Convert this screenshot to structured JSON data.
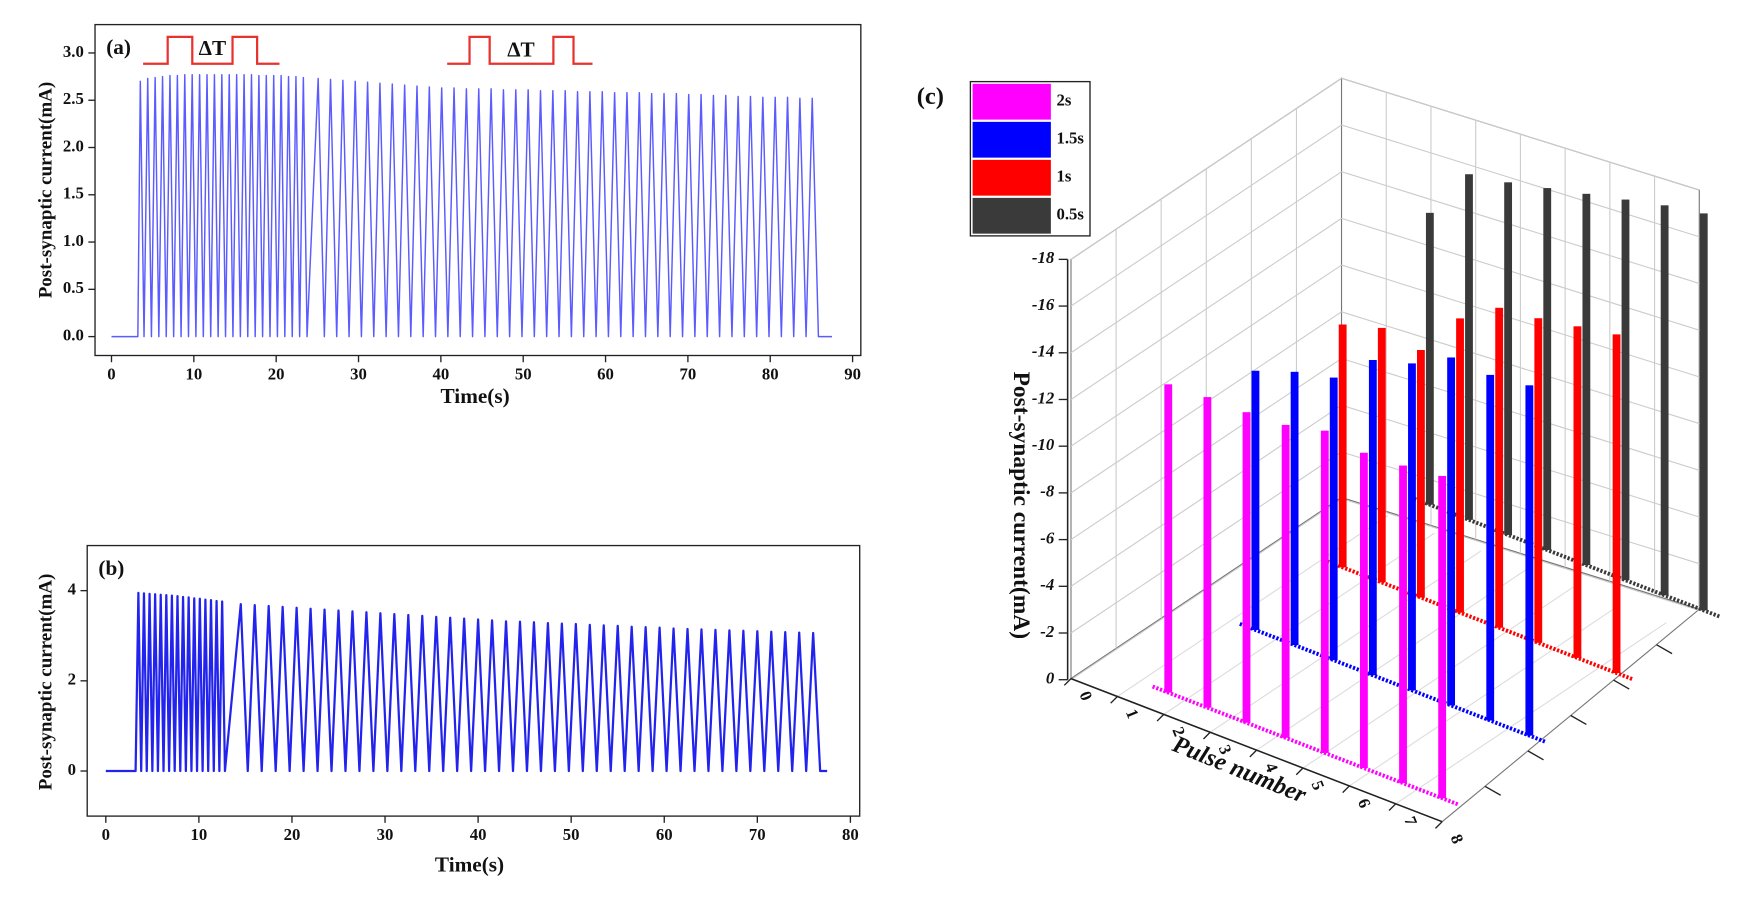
{
  "chart_data": [
    {
      "type": "line",
      "label": "(a)",
      "annotations": [
        "ΔT",
        "ΔT"
      ],
      "xlabel": "Time(s)",
      "ylabel": "Post-synaptic current(mA)",
      "color": "#5b5bff",
      "xlim": [
        -2,
        91
      ],
      "xticks": [
        0,
        10,
        20,
        30,
        40,
        50,
        60,
        70,
        80,
        90
      ],
      "ylim": [
        -0.2,
        3.3
      ],
      "yticks": [
        {
          "value": 0,
          "label": "0.0"
        },
        0.5,
        {
          "value": 1,
          "label": "1.0"
        },
        1.5,
        {
          "value": 2,
          "label": "2.0"
        },
        2.5,
        {
          "value": 3,
          "label": "3.0"
        }
      ],
      "x": [
        0,
        3.2,
        3.5,
        3.95,
        4.4,
        4.85,
        5.3,
        5.75,
        6.2,
        6.65,
        7.1,
        7.55,
        8.0,
        8.45,
        8.9,
        9.35,
        9.8,
        10.25,
        10.7,
        11.15,
        11.6,
        12.05,
        12.5,
        12.95,
        13.4,
        13.85,
        14.3,
        14.75,
        15.2,
        15.65,
        16.1,
        16.55,
        17.0,
        17.45,
        17.9,
        18.35,
        18.8,
        19.25,
        19.7,
        20.15,
        20.6,
        21.05,
        21.5,
        21.95,
        22.4,
        22.85,
        23.3,
        23.75,
        25.1,
        25.85,
        26.6,
        27.35,
        28.1,
        28.85,
        29.6,
        30.35,
        31.1,
        31.85,
        32.6,
        33.35,
        34.1,
        34.85,
        35.6,
        36.35,
        37.1,
        37.85,
        38.6,
        39.35,
        40.1,
        40.85,
        41.6,
        42.35,
        43.1,
        43.85,
        44.6,
        45.35,
        46.1,
        46.85,
        47.6,
        48.35,
        49.1,
        49.85,
        50.6,
        51.35,
        52.1,
        52.85,
        53.6,
        54.35,
        55.1,
        55.85,
        56.6,
        57.35,
        58.1,
        58.85,
        59.6,
        60.35,
        61.1,
        61.85,
        62.6,
        63.35,
        64.1,
        64.85,
        65.6,
        66.35,
        67.1,
        67.85,
        68.6,
        69.35,
        70.1,
        70.85,
        71.6,
        72.35,
        73.1,
        73.85,
        74.6,
        75.35,
        76.1,
        76.85,
        77.6,
        78.35,
        79.1,
        79.85,
        80.6,
        81.35,
        82.1,
        82.85,
        83.6,
        84.35,
        85.1,
        85.85,
        87.5
      ],
      "values": [
        0,
        0,
        2.7,
        0,
        2.73,
        0,
        2.74,
        0,
        2.75,
        0,
        2.76,
        0,
        2.76,
        0,
        2.77,
        0,
        2.77,
        0,
        2.77,
        0,
        2.77,
        0,
        2.77,
        0,
        2.77,
        0,
        2.77,
        0,
        2.77,
        0,
        2.77,
        0,
        2.77,
        0,
        2.76,
        0,
        2.76,
        0,
        2.76,
        0,
        2.76,
        0,
        2.75,
        0,
        2.75,
        0,
        2.74,
        0,
        2.73,
        0,
        2.72,
        0,
        2.71,
        0,
        2.7,
        0,
        2.69,
        0,
        2.68,
        0,
        2.67,
        0,
        2.66,
        0,
        2.65,
        0,
        2.64,
        0,
        2.63,
        0,
        2.63,
        0,
        2.62,
        0,
        2.62,
        0,
        2.62,
        0,
        2.61,
        0,
        2.61,
        0,
        2.61,
        0,
        2.6,
        0,
        2.6,
        0,
        2.6,
        0,
        2.59,
        0,
        2.59,
        0,
        2.59,
        0,
        2.58,
        0,
        2.58,
        0,
        2.58,
        0,
        2.57,
        0,
        2.57,
        0,
        2.57,
        0,
        2.56,
        0,
        2.56,
        0,
        2.55,
        0,
        2.55,
        0,
        2.54,
        0,
        2.54,
        0,
        2.53,
        0,
        2.53,
        0,
        2.53,
        0,
        2.52,
        0,
        2.52,
        0,
        0
      ]
    },
    {
      "type": "line",
      "label": "(b)",
      "xlabel": "Time(s)",
      "ylabel": "Post-synaptic current(mA)",
      "color": "#2323ee",
      "xlim": [
        -2,
        81
      ],
      "xticks": [
        0,
        10,
        20,
        30,
        40,
        50,
        60,
        70,
        80
      ],
      "ylim": [
        -1,
        5
      ],
      "yticks": [
        0,
        2,
        4
      ],
      "x": [
        0,
        3.2,
        3.5,
        3.8,
        4.1,
        4.4,
        4.7,
        5.0,
        5.3,
        5.6,
        5.9,
        6.2,
        6.5,
        6.8,
        7.1,
        7.4,
        7.7,
        8.0,
        8.3,
        8.6,
        8.9,
        9.2,
        9.5,
        9.8,
        10.1,
        10.4,
        10.7,
        11.0,
        11.3,
        11.6,
        11.9,
        12.2,
        12.5,
        12.8,
        14.5,
        15.25,
        16.0,
        16.75,
        17.5,
        18.25,
        19.0,
        19.75,
        20.5,
        21.25,
        22.0,
        22.75,
        23.5,
        24.25,
        25.0,
        25.75,
        26.5,
        27.25,
        28.0,
        28.75,
        29.5,
        30.25,
        31.0,
        31.75,
        32.5,
        33.25,
        34.0,
        34.75,
        35.5,
        36.25,
        37.0,
        37.75,
        38.5,
        39.25,
        40.0,
        40.75,
        41.5,
        42.25,
        43.0,
        43.75,
        44.5,
        45.25,
        46.0,
        46.75,
        47.5,
        48.25,
        49.0,
        49.75,
        50.5,
        51.25,
        52.0,
        52.75,
        53.5,
        54.25,
        55.0,
        55.75,
        56.5,
        57.25,
        58.0,
        58.75,
        59.5,
        60.25,
        61.0,
        61.75,
        62.5,
        63.25,
        64.0,
        64.75,
        65.5,
        66.25,
        67.0,
        67.75,
        68.5,
        69.25,
        70.0,
        70.75,
        71.5,
        72.25,
        73.0,
        73.75,
        74.5,
        75.25,
        76.0,
        76.75,
        77.5
      ],
      "values": [
        0,
        0,
        3.95,
        0,
        3.94,
        0,
        3.93,
        0,
        3.92,
        0,
        3.91,
        0,
        3.9,
        0,
        3.89,
        0,
        3.88,
        0,
        3.86,
        0,
        3.85,
        0,
        3.83,
        0,
        3.82,
        0,
        3.8,
        0,
        3.79,
        0,
        3.77,
        0,
        3.76,
        0,
        3.7,
        0,
        3.68,
        0,
        3.66,
        0,
        3.64,
        0,
        3.62,
        0,
        3.6,
        0,
        3.58,
        0,
        3.56,
        0,
        3.54,
        0,
        3.52,
        0,
        3.5,
        0,
        3.48,
        0,
        3.46,
        0,
        3.44,
        0,
        3.42,
        0,
        3.4,
        0,
        3.38,
        0,
        3.36,
        0,
        3.34,
        0,
        3.32,
        0,
        3.31,
        0,
        3.3,
        0,
        3.28,
        0,
        3.27,
        0,
        3.26,
        0,
        3.24,
        0,
        3.23,
        0,
        3.22,
        0,
        3.2,
        0,
        3.19,
        0,
        3.18,
        0,
        3.16,
        0,
        3.15,
        0,
        3.14,
        0,
        3.13,
        0,
        3.12,
        0,
        3.11,
        0,
        3.1,
        0,
        3.09,
        0,
        3.08,
        0,
        3.07,
        0,
        3.06,
        0,
        0
      ]
    },
    {
      "type": "bar3d",
      "label": "(c)",
      "xlabel": "Pulse number",
      "zlabel": "Post-synaptic current(mA)",
      "x": [
        1,
        2,
        3,
        4,
        5,
        6,
        7,
        8
      ],
      "xlim": [
        0,
        8
      ],
      "xticks": [
        0,
        1,
        2,
        3,
        4,
        5,
        6,
        7,
        8
      ],
      "zlim": [
        0,
        -18
      ],
      "zticks": [
        0,
        -2,
        -4,
        -6,
        -8,
        -10,
        -12,
        -14,
        -16,
        -18
      ],
      "series": [
        {
          "name": "2s",
          "color": "#ff00ff",
          "values": [
            -13.2,
            -13.3,
            -13.3,
            -13.4,
            -13.8,
            -13.5,
            -13.6,
            -13.8
          ]
        },
        {
          "name": "1.5s",
          "color": "#0000ff",
          "values": [
            -11.1,
            -11.7,
            -12.1,
            -13.5,
            -14.0,
            -14.9,
            -14.8,
            -15.0
          ]
        },
        {
          "name": "1s",
          "color": "#ff0000",
          "values": [
            -10.4,
            -10.9,
            -10.6,
            -12.6,
            -13.7,
            -13.9,
            -14.2,
            -14.5
          ]
        },
        {
          "name": "0.5s",
          "color": "#3a3a3a",
          "values": [
            -12.5,
            -14.8,
            -15.1,
            -15.5,
            -15.9,
            -16.3,
            -16.7,
            -17.0
          ]
        }
      ]
    }
  ]
}
